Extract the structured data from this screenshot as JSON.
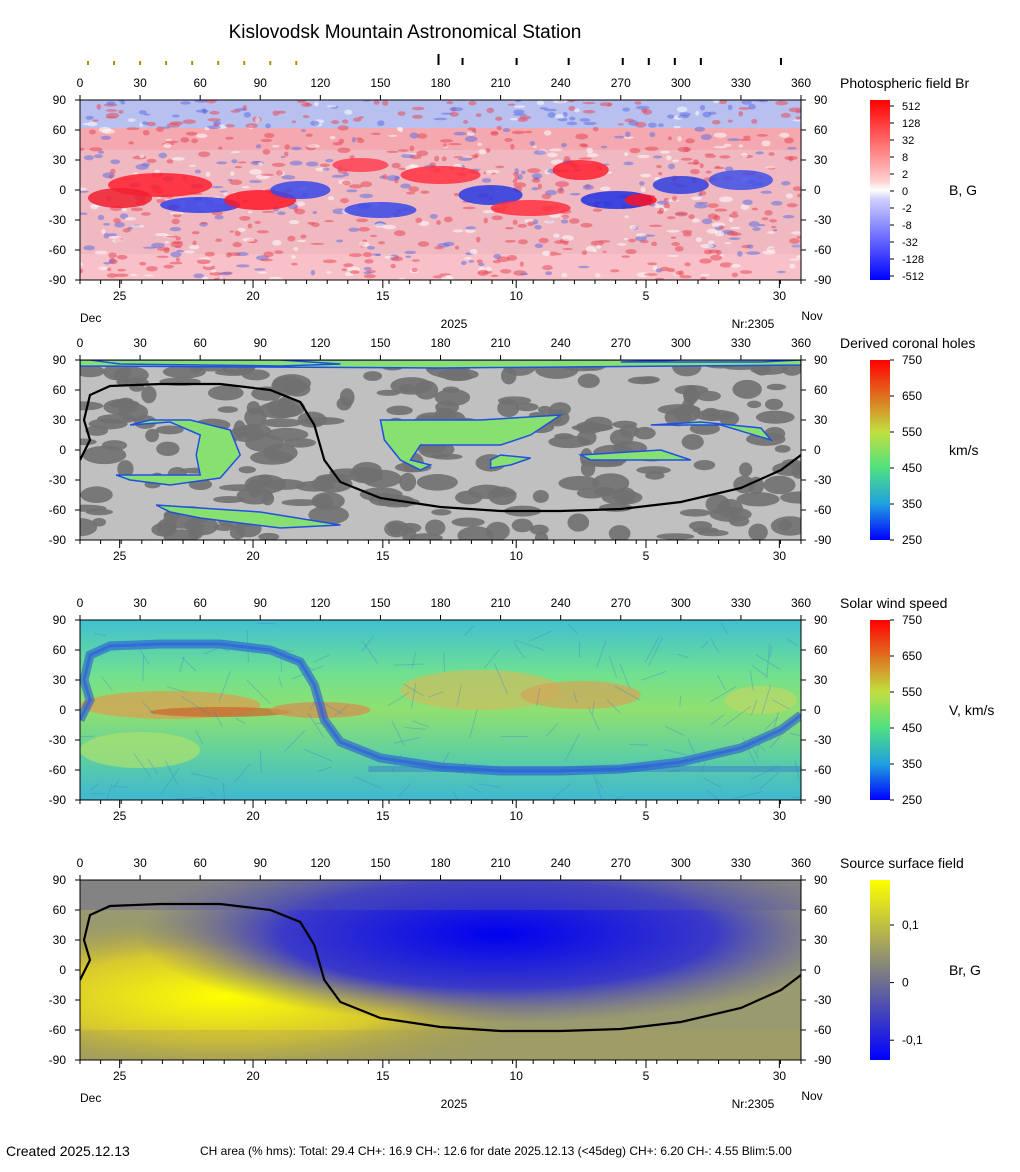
{
  "page": {
    "title": "Kislovodsk Mountain Astronomical Station",
    "created": "Created  2025.12.13",
    "footer_stats": "CH area (% hms): Total: 29.4 CH+: 16.9   CH-: 12.6 for date 2025.12.13 (<45deg) CH+: 6.20    CH-: 4.55 Blim:5.00"
  },
  "chart_data": [
    {
      "id": "photospheric",
      "type": "heatmap",
      "title": "Photospheric field Br",
      "colorbar_unit": "B, G",
      "colorbar_ticks": [
        "512",
        "128",
        "32",
        "8",
        "2",
        "0",
        "-2",
        "-8",
        "-32",
        "-128",
        "-512"
      ],
      "colormap": [
        "#ff0000",
        "#ffffff",
        "#0000ff"
      ],
      "x_ticks": [
        0,
        30,
        60,
        90,
        120,
        150,
        180,
        210,
        240,
        270,
        300,
        330,
        360
      ],
      "y_ticks": [
        90,
        60,
        30,
        0,
        -30,
        -60,
        -90
      ],
      "xlim": [
        0,
        360
      ],
      "ylim": [
        -90,
        90
      ],
      "date_ticks": [
        "25",
        "20",
        "15",
        "10",
        "5",
        "30"
      ],
      "month_left": "Dec",
      "month_right": "Nov",
      "year": "2025",
      "rotation": "Nr:2305",
      "neutral_line": false
    },
    {
      "id": "coronal_holes",
      "type": "heatmap",
      "title": "Derived coronal holes",
      "colorbar_unit": "km/s",
      "colorbar_ticks": [
        "750",
        "650",
        "550",
        "450",
        "350",
        "250"
      ],
      "colormap": [
        "#ff0000",
        "#e08020",
        "#b0e040",
        "#60e070",
        "#20c0c0",
        "#0000ff"
      ],
      "x_ticks": [
        0,
        30,
        60,
        90,
        120,
        150,
        180,
        210,
        240,
        270,
        300,
        330,
        360
      ],
      "y_ticks": [
        90,
        60,
        30,
        0,
        -30,
        -60,
        -90
      ],
      "xlim": [
        0,
        360
      ],
      "ylim": [
        -90,
        90
      ],
      "date_ticks": [
        "25",
        "20",
        "15",
        "10",
        "5",
        "30"
      ],
      "neutral_line": true
    },
    {
      "id": "solar_wind",
      "type": "heatmap",
      "title": "Solar wind speed",
      "colorbar_unit": "V, km/s",
      "colorbar_ticks": [
        "750",
        "650",
        "550",
        "450",
        "350",
        "250"
      ],
      "colormap": [
        "#ff0000",
        "#e08020",
        "#b0e040",
        "#60e070",
        "#20c0c0",
        "#0000ff"
      ],
      "x_ticks": [
        0,
        30,
        60,
        90,
        120,
        150,
        180,
        210,
        240,
        270,
        300,
        330,
        360
      ],
      "y_ticks": [
        90,
        60,
        30,
        0,
        -30,
        -60,
        -90
      ],
      "xlim": [
        0,
        360
      ],
      "ylim": [
        -90,
        90
      ],
      "date_ticks": [
        "25",
        "20",
        "15",
        "10",
        "5",
        "30"
      ],
      "neutral_line": false
    },
    {
      "id": "source_surface",
      "type": "heatmap",
      "title": "Source surface field",
      "colorbar_unit": "Br, G",
      "colorbar_ticks": [
        "0,1",
        "0",
        "-0,1"
      ],
      "colormap": [
        "#ffff00",
        "#808080",
        "#0000ff"
      ],
      "x_ticks": [
        0,
        30,
        60,
        90,
        120,
        150,
        180,
        210,
        240,
        270,
        300,
        330,
        360
      ],
      "y_ticks": [
        90,
        60,
        30,
        0,
        -30,
        -60,
        -90
      ],
      "xlim": [
        0,
        360
      ],
      "ylim": [
        -90,
        90
      ],
      "date_ticks": [
        "25",
        "20",
        "15",
        "10",
        "5",
        "30"
      ],
      "month_left": "Dec",
      "month_right": "Nov",
      "year": "2025",
      "rotation": "Nr:2305",
      "neutral_line": true,
      "neutral_line_points": [
        [
          0,
          -10
        ],
        [
          5,
          10
        ],
        [
          2,
          30
        ],
        [
          5,
          55
        ],
        [
          15,
          64
        ],
        [
          40,
          66
        ],
        [
          70,
          66
        ],
        [
          95,
          60
        ],
        [
          110,
          48
        ],
        [
          117,
          25
        ],
        [
          122,
          -10
        ],
        [
          130,
          -32
        ],
        [
          150,
          -48
        ],
        [
          180,
          -57
        ],
        [
          210,
          -61
        ],
        [
          240,
          -61
        ],
        [
          270,
          -59
        ],
        [
          300,
          -52
        ],
        [
          330,
          -38
        ],
        [
          350,
          -20
        ],
        [
          360,
          -5
        ]
      ]
    }
  ],
  "carrington_markers": {
    "minor_longitudes": [
      4,
      17,
      30,
      43,
      56,
      69,
      82,
      95,
      108
    ],
    "major_longitudes": [
      179,
      191,
      218,
      244,
      271,
      284,
      297,
      310,
      350
    ]
  }
}
